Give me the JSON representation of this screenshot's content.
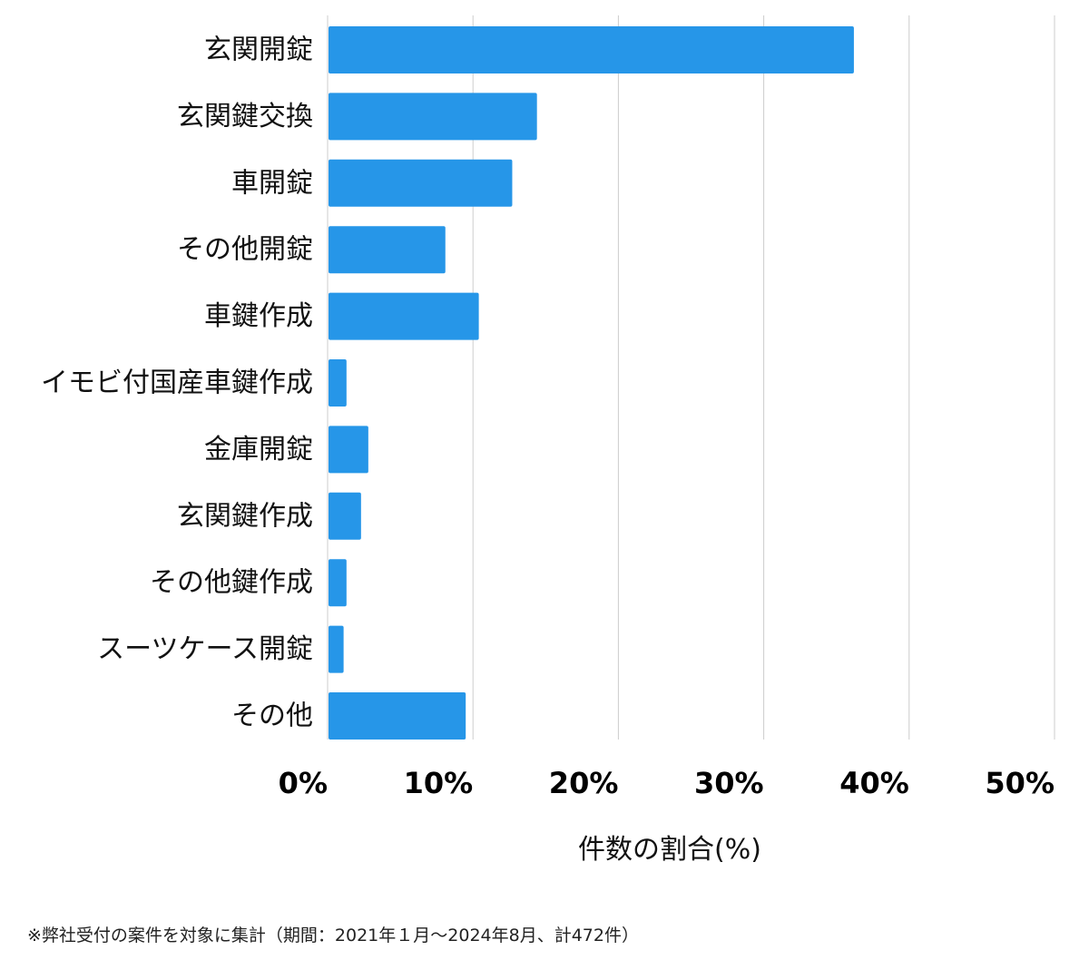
{
  "chart_data": {
    "type": "bar",
    "orientation": "horizontal",
    "categories": [
      "玄関開錠",
      "玄関鍵交換",
      "車開錠",
      "その他開錠",
      "車鍵作成",
      "イモビ付国産車鍵作成",
      "金庫開錠",
      "玄関鍵作成",
      "その他鍵作成",
      "スーツケース開錠",
      "その他"
    ],
    "values": [
      36.2,
      14.4,
      12.7,
      8.1,
      10.4,
      1.3,
      2.8,
      2.3,
      1.3,
      1.1,
      9.5
    ],
    "xlabel": "件数の割合(%)",
    "xlim": [
      0,
      50
    ],
    "xticks": [
      0,
      10,
      20,
      30,
      40,
      50
    ],
    "xtick_labels": [
      "0%",
      "10%",
      "20%",
      "30%",
      "40%",
      "50%"
    ],
    "grid": true,
    "bar_color": "#2696e8"
  },
  "footnote": "※弊社受付の案件を対象に集計（期間：2021年１月〜2024年8月、計472件）"
}
